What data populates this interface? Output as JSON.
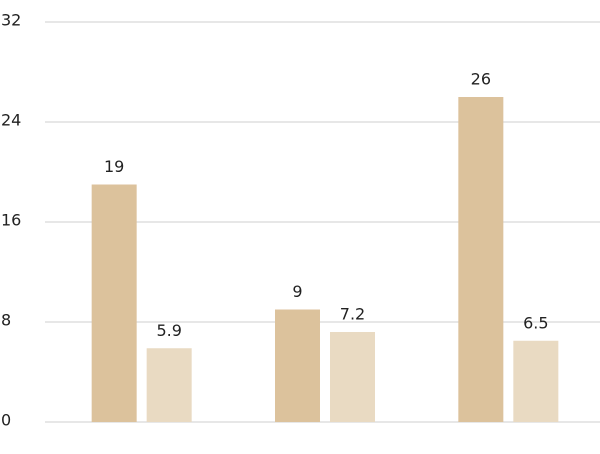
{
  "chart_data": {
    "type": "bar",
    "categories": [
      null,
      null,
      null
    ],
    "series": [
      {
        "color": "#dcc29c",
        "values": [
          19,
          9,
          26
        ]
      },
      {
        "color": "#e9dac2",
        "values": [
          5.9,
          7.2,
          6.5
        ]
      }
    ],
    "ylim": [
      0,
      32
    ],
    "yticks": [
      0,
      8,
      16,
      24,
      32
    ],
    "grid": true
  }
}
